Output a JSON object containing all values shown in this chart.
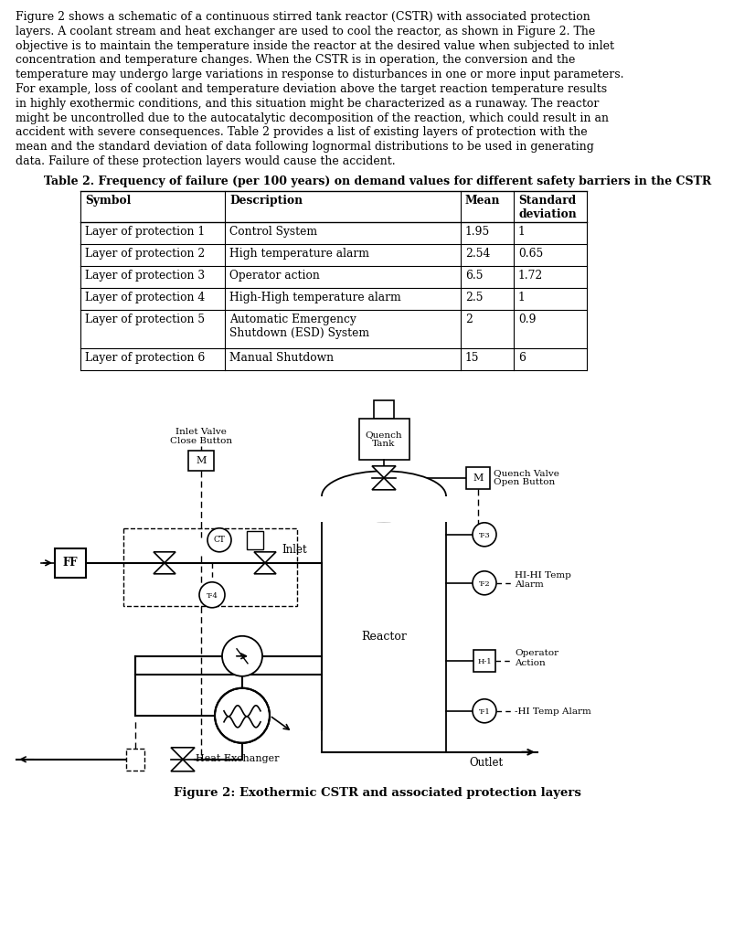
{
  "paragraph_lines": [
    "Figure 2 shows a schematic of a continuous stirred tank reactor (CSTR) with associated protection",
    "layers. A coolant stream and heat exchanger are used to cool the reactor, as shown in Figure 2. The",
    "objective is to maintain the temperature inside the reactor at the desired value when subjected to inlet",
    "concentration and temperature changes. When the CSTR is in operation, the conversion and the",
    "temperature may undergo large variations in response to disturbances in one or more input parameters.",
    "For example, loss of coolant and temperature deviation above the target reaction temperature results",
    "in highly exothermic conditions, and this situation might be characterized as a runaway. The reactor",
    "might be uncontrolled due to the autocatalytic decomposition of the reaction, which could result in an",
    "accident with severe consequences. Table 2 provides a list of existing layers of protection with the",
    "mean and the standard deviation of data following lognormal distributions to be used in generating",
    "data. Failure of these protection layers would cause the accident."
  ],
  "table_title": "Table 2. Frequency of failure (per 100 years) on demand values for different safety barriers in the CSTR",
  "table_headers": [
    "Symbol",
    "Description",
    "Mean",
    "Standard\ndeviation"
  ],
  "table_rows": [
    [
      "Layer of protection 1",
      "Control System",
      "1.95",
      "1"
    ],
    [
      "Layer of protection 2",
      "High temperature alarm",
      "2.54",
      "0.65"
    ],
    [
      "Layer of protection 3",
      "Operator action",
      "6.5",
      "1.72"
    ],
    [
      "Layer of protection 4",
      "High-High temperature alarm",
      "2.5",
      "1"
    ],
    [
      "Layer of protection 5",
      "Automatic Emergency\nShutdown (ESD) System",
      "2",
      "0.9"
    ],
    [
      "Layer of protection 6",
      "Manual Shutdown",
      "15",
      "6"
    ]
  ],
  "figure_caption": "Figure 2: Exothermic CSTR and associated protection layers",
  "bg_color": "#ffffff",
  "text_color": "#000000"
}
